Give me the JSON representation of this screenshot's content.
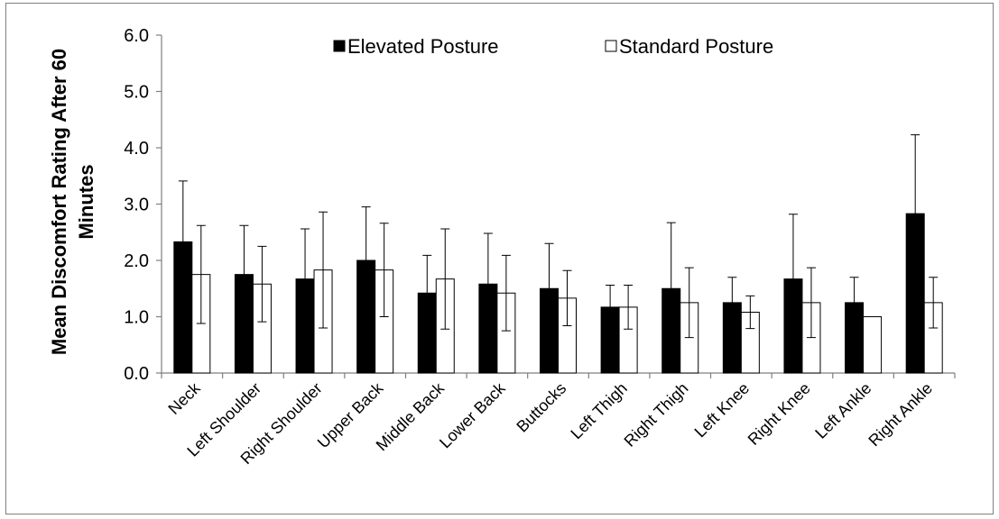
{
  "chart_data": {
    "type": "bar",
    "categories": [
      "Neck",
      "Left Shoulder",
      "Right Shoulder",
      "Upper Back",
      "Middle Back",
      "Lower Back",
      "Buttocks",
      "Left Thigh",
      "Right Thigh",
      "Left Knee",
      "Right Knee",
      "Left Ankle",
      "Right Ankle"
    ],
    "series": [
      {
        "name": "Elevated Posture",
        "color": "#000000",
        "values": [
          2.33,
          1.75,
          1.67,
          2.0,
          1.42,
          1.58,
          1.5,
          1.17,
          1.5,
          1.25,
          1.67,
          1.25,
          2.83
        ],
        "error": [
          1.08,
          0.87,
          0.89,
          0.95,
          0.67,
          0.9,
          0.8,
          0.39,
          1.17,
          0.45,
          1.15,
          0.45,
          1.4
        ]
      },
      {
        "name": "Standard Posture",
        "color": "#ffffff",
        "values": [
          1.75,
          1.58,
          1.83,
          1.83,
          1.67,
          1.42,
          1.33,
          1.17,
          1.25,
          1.08,
          1.25,
          1.0,
          1.25
        ],
        "error": [
          0.87,
          0.67,
          1.03,
          0.83,
          0.89,
          0.67,
          0.49,
          0.39,
          0.62,
          0.29,
          0.62,
          0.0,
          0.45
        ]
      }
    ],
    "ylabel": "Mean Discomfort Rating After 60 Minutes",
    "ylabel_lines": [
      "Mean Discomfort Rating After 60",
      "Minutes"
    ],
    "xlabel": "",
    "title": "",
    "ylim": [
      0,
      6
    ],
    "yticks": [
      "0.0",
      "1.0",
      "2.0",
      "3.0",
      "4.0",
      "5.0",
      "6.0"
    ],
    "grid": false,
    "legend_position": "top-center",
    "has_error_bars": true
  }
}
